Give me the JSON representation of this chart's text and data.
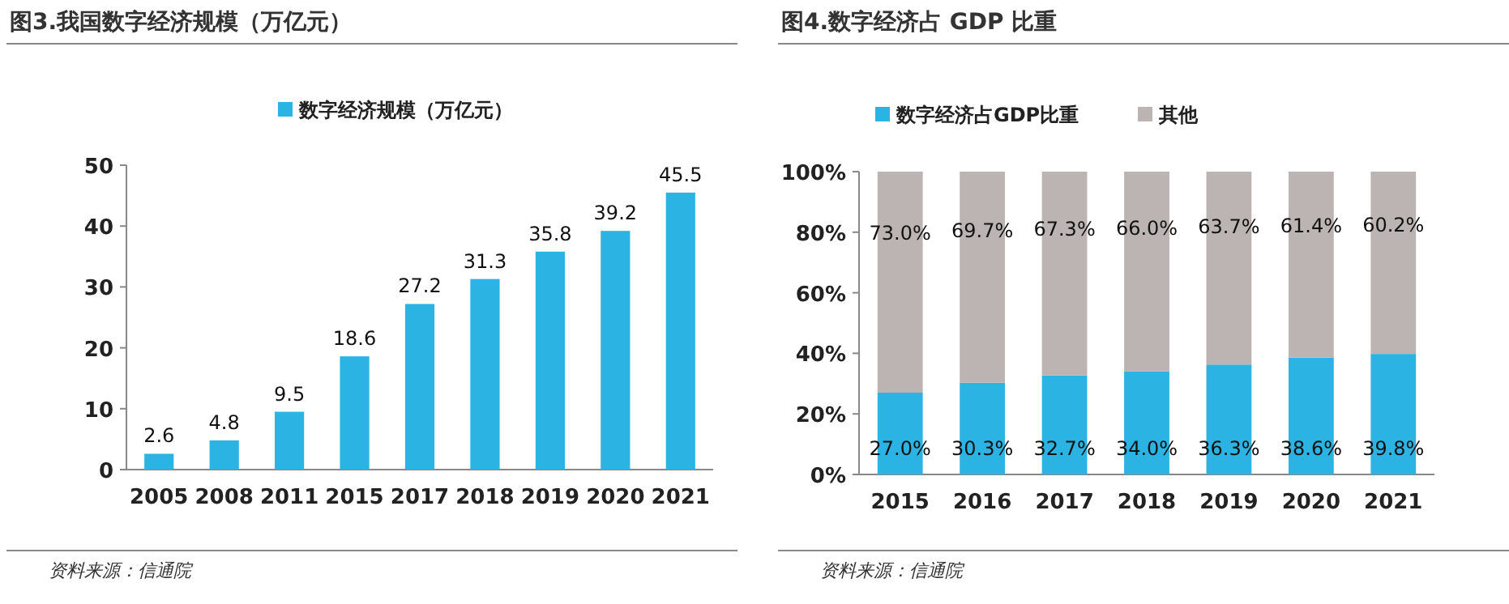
{
  "chart_data": [
    {
      "type": "bar",
      "title": "图3.我国数字经济规模（万亿元）",
      "categories": [
        "2005",
        "2008",
        "2011",
        "2015",
        "2017",
        "2018",
        "2019",
        "2020",
        "2021"
      ],
      "series": [
        {
          "name": "数字经济规模（万亿元）",
          "color": "#2bb3e3",
          "values": [
            2.6,
            4.8,
            9.5,
            18.6,
            27.2,
            31.3,
            35.8,
            39.2,
            45.5
          ]
        }
      ],
      "ylim": [
        0,
        50
      ],
      "yticks": [
        0,
        10,
        20,
        30,
        40,
        50
      ],
      "data_labels": true,
      "legend": "top",
      "grid": false,
      "annotations": [
        "资料来源：信通院"
      ]
    },
    {
      "type": "bar",
      "title": "图4.数字经济占 GDP 比重",
      "categories": [
        "2015",
        "2016",
        "2017",
        "2018",
        "2019",
        "2020",
        "2021"
      ],
      "stacked": true,
      "series": [
        {
          "name": "数字经济占GDP比重",
          "color": "#2bb3e3",
          "values": [
            27.0,
            30.3,
            32.7,
            34.0,
            36.3,
            38.6,
            39.8
          ],
          "value_labels": [
            "27.0%",
            "30.3%",
            "32.7%",
            "34.0%",
            "36.3%",
            "38.6%",
            "39.8%"
          ]
        },
        {
          "name": "其他",
          "color": "#bcb3b3",
          "values": [
            73.0,
            69.7,
            67.3,
            66.0,
            63.7,
            61.4,
            60.2
          ],
          "value_labels": [
            "73.0%",
            "69.7%",
            "67.3%",
            "66.0%",
            "63.7%",
            "61.4%",
            "60.2%"
          ]
        }
      ],
      "ylim": [
        0,
        100
      ],
      "yticks": [
        {
          "value": 0,
          "label": "0%"
        },
        {
          "value": 20,
          "label": "20%"
        },
        {
          "value": 40,
          "label": "40%"
        },
        {
          "value": 60,
          "label": "60%"
        },
        {
          "value": 80,
          "label": "80%"
        },
        {
          "value": 100,
          "label": "100%"
        }
      ],
      "legend": "top left",
      "grid": false,
      "annotations": [
        "资料来源：信通院"
      ]
    }
  ]
}
